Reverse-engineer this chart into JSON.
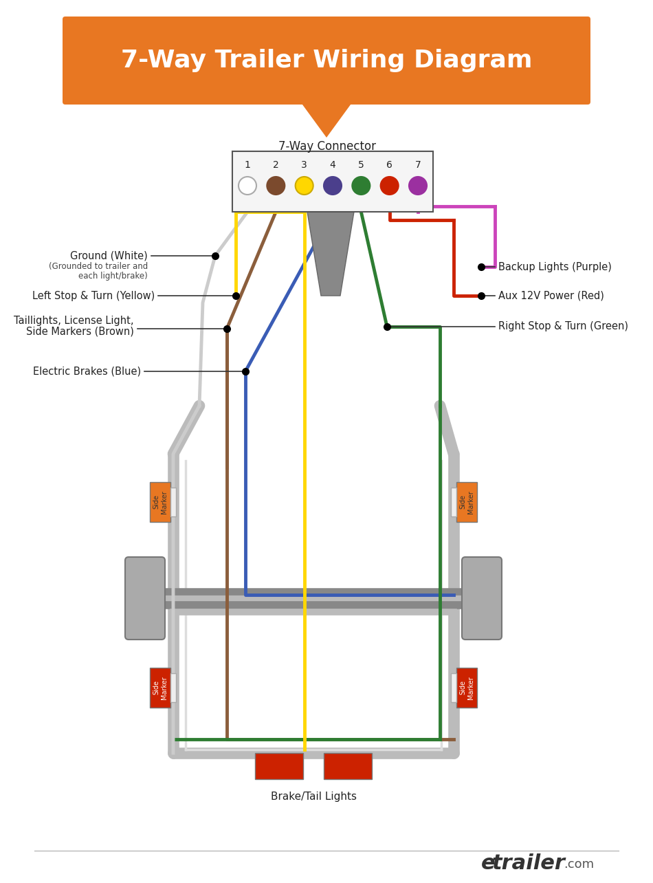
{
  "title": "7-Way Trailer Wiring Diagram",
  "title_color": "#FFFFFF",
  "title_bg_color": "#E87722",
  "bg_color": "#FFFFFF",
  "connector_label": "7-Way Connector",
  "pin_numbers": [
    "1",
    "2",
    "3",
    "4",
    "5",
    "6",
    "7"
  ],
  "pin_colors": [
    "#FFFFFF",
    "#7B4A2D",
    "#FFD700",
    "#4B3F8C",
    "#2E7D32",
    "#CC2200",
    "#9B30A0"
  ],
  "pin_outline_colors": [
    "#AAAAAA",
    "#7B4A2D",
    "#CCAA00",
    "#4B3F8C",
    "#2E7D32",
    "#CC2200",
    "#9B30A0"
  ],
  "wire_colors": {
    "white": "#CCCCCC",
    "brown": "#8B5E3C",
    "yellow": "#FFD700",
    "blue": "#3A5CB5",
    "green": "#2E7D32",
    "red": "#CC2200",
    "purple": "#CC44BB"
  },
  "frame_color": "#BBBBBB",
  "frame_lw": 12,
  "axle_color": "#999999",
  "footer_text": "etrailer",
  "footer_dot_color": "#FFD700",
  "footer_suffix": ".com",
  "brake_tail_label": "Brake/Tail Lights"
}
